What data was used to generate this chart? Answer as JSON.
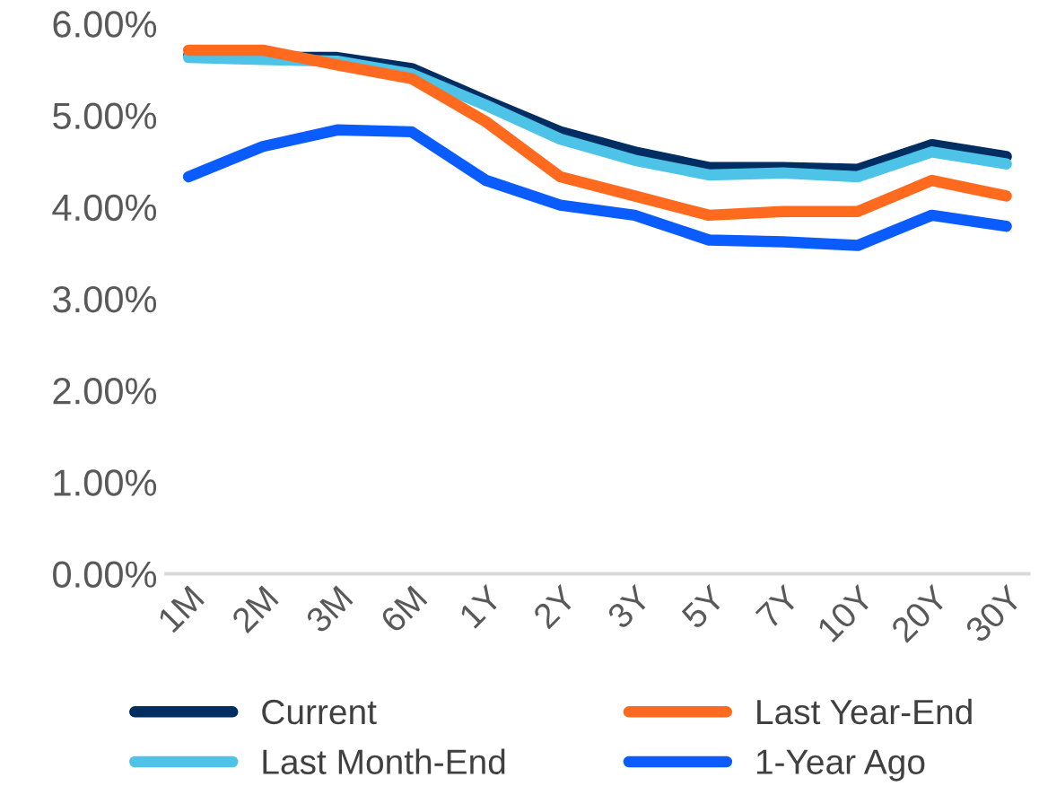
{
  "chart_data": {
    "type": "line",
    "categories": [
      "1M",
      "2M",
      "3M",
      "6M",
      "1Y",
      "2Y",
      "3Y",
      "5Y",
      "7Y",
      "10Y",
      "20Y",
      "30Y"
    ],
    "series": [
      {
        "name": "Current",
        "color": "#002d62",
        "values": [
          5.65,
          5.63,
          5.63,
          5.51,
          5.16,
          4.82,
          4.6,
          4.43,
          4.43,
          4.41,
          4.68,
          4.55
        ]
      },
      {
        "name": "Last Month-End",
        "color": "#4ec3e8",
        "values": [
          5.63,
          5.61,
          5.59,
          5.45,
          5.11,
          4.74,
          4.51,
          4.35,
          4.37,
          4.33,
          4.6,
          4.47
        ]
      },
      {
        "name": "Last Year-End",
        "color": "#ff6a1f",
        "values": [
          5.71,
          5.71,
          5.55,
          5.4,
          4.93,
          4.33,
          4.12,
          3.91,
          3.95,
          3.95,
          4.29,
          4.12
        ]
      },
      {
        "name": "1-Year Ago",
        "color": "#0a5cff",
        "values": [
          4.33,
          4.66,
          4.84,
          4.82,
          4.29,
          4.02,
          3.91,
          3.64,
          3.62,
          3.58,
          3.91,
          3.79
        ]
      }
    ],
    "ylim": [
      0,
      6
    ],
    "yticks": [
      {
        "value": 0,
        "label": "0.00%"
      },
      {
        "value": 1,
        "label": "1.00%"
      },
      {
        "value": 2,
        "label": "2.00%"
      },
      {
        "value": 3,
        "label": "3.00%"
      },
      {
        "value": 4,
        "label": "4.00%"
      },
      {
        "value": 5,
        "label": "5.00%"
      },
      {
        "value": 6,
        "label": "6.00%"
      }
    ],
    "grid": false,
    "legend": "bottom",
    "marker": "none",
    "line_style": "solid"
  }
}
